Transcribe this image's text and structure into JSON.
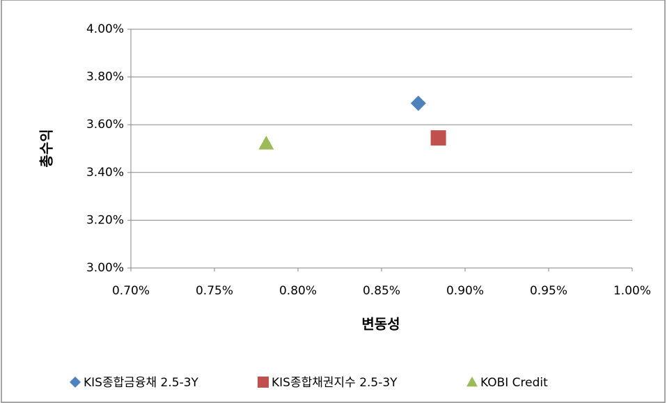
{
  "chart_data": {
    "type": "scatter",
    "x_label": "변동성",
    "y_label": "총수익",
    "xlim": [
      0.7,
      1.0
    ],
    "xticks": [
      {
        "value": 0.7,
        "label": "0.70%"
      },
      {
        "value": 0.75,
        "label": "0.75%"
      },
      {
        "value": 0.8,
        "label": "0.80%"
      },
      {
        "value": 0.85,
        "label": "0.85%"
      },
      {
        "value": 0.9,
        "label": "0.90%"
      },
      {
        "value": 0.95,
        "label": "0.95%"
      },
      {
        "value": 1.0,
        "label": "1.00%"
      }
    ],
    "ylim": [
      3.0,
      4.0
    ],
    "yticks": [
      {
        "value": 3.0,
        "label": "3.00%"
      },
      {
        "value": 3.2,
        "label": "3.20%"
      },
      {
        "value": 3.4,
        "label": "3.40%"
      },
      {
        "value": 3.6,
        "label": "3.60%"
      },
      {
        "value": 3.8,
        "label": "3.80%"
      },
      {
        "value": 4.0,
        "label": "4.00%"
      }
    ],
    "grid": true,
    "legend": "bottom",
    "series": [
      {
        "name": "KIS종합금융채 2.5-3Y",
        "color": "#4f81bd",
        "marker": "diamond",
        "x": [
          0.872
        ],
        "values": [
          3.69
        ]
      },
      {
        "name": "KIS종합채권지수 2.5-3Y",
        "color": "#c0504d",
        "marker": "square",
        "x": [
          0.884
        ],
        "values": [
          3.545
        ]
      },
      {
        "name": "KOBI Credit",
        "color": "#9bbb59",
        "marker": "triangle",
        "x": [
          0.781
        ],
        "values": [
          3.522
        ]
      }
    ]
  }
}
